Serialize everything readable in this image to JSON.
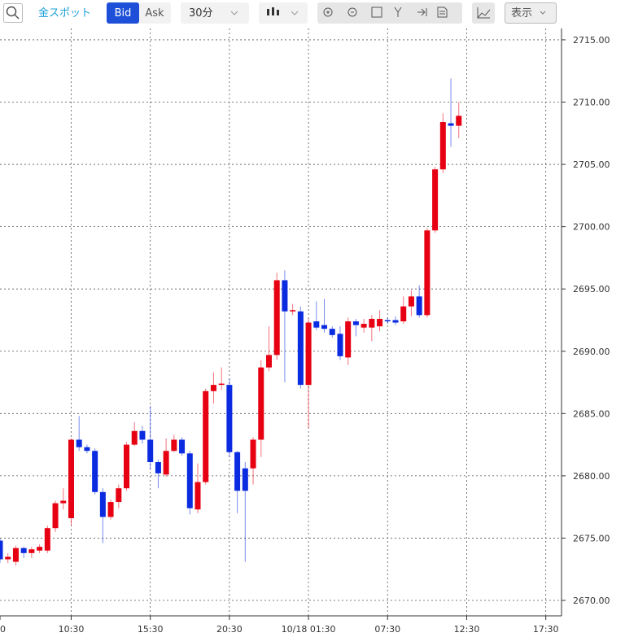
{
  "toolbar": {
    "symbol": "金スポット",
    "bid": "Bid",
    "ask": "Ask",
    "interval": "30分",
    "display": "表示"
  },
  "chart_data": {
    "type": "candlestick",
    "categories": [
      "0",
      null,
      null,
      null,
      null,
      null,
      null,
      null,
      null,
      "10:30",
      null,
      null,
      null,
      null,
      null,
      null,
      null,
      null,
      null,
      "15:30",
      null,
      null,
      null,
      null,
      null,
      null,
      null,
      null,
      null,
      "20:30",
      null,
      null,
      null,
      null,
      null,
      null,
      null,
      null,
      null,
      "10/18 01:30",
      null,
      null,
      null,
      null,
      null,
      null,
      null,
      null,
      null,
      "07:30",
      null,
      null,
      null,
      null,
      null,
      null,
      null,
      null,
      null,
      "12:30",
      null,
      null,
      null,
      null,
      null,
      null,
      null,
      null,
      null,
      "17:30"
    ],
    "open": [
      2674.8,
      2673.3,
      2673.1,
      2674.2,
      2673.8,
      2674.0,
      2674.0,
      2675.8,
      2677.8,
      2676.6,
      2682.9,
      2682.3,
      2682.0,
      2678.7,
      2676.7,
      2677.9,
      2679.0,
      2682.5,
      2683.6,
      2682.9,
      2681.1,
      2680.1,
      2682.0,
      2682.9,
      2681.8,
      2677.3,
      2679.5,
      2686.8,
      2687.3,
      2687.3,
      2681.9,
      2680.6,
      2680.6,
      2682.9,
      2688.7,
      2689.7,
      2695.7,
      2693.2,
      2693.2,
      2687.3,
      2692.4,
      2692.1,
      2691.8,
      2691.4,
      2689.5,
      2692.4,
      2691.9,
      2691.9,
      2692.0,
      2692.5,
      2692.5,
      2692.4,
      2693.6,
      2694.4,
      2692.9,
      2699.7,
      2704.6,
      2708.3,
      2708.1,
      null,
      null,
      null,
      null,
      null,
      null,
      null,
      null,
      null,
      null,
      null
    ],
    "high": [
      2675.0,
      2673.8,
      2674.4,
      2674.3,
      2674.3,
      2674.5,
      2676.0,
      2678.0,
      2679.0,
      2683.0,
      2684.8,
      2682.5,
      2682.2,
      2679.0,
      2678.1,
      2679.3,
      2682.7,
      2684.3,
      2684.0,
      2685.6,
      2681.3,
      2683.0,
      2683.3,
      2683.1,
      2682.0,
      2681.0,
      2687.0,
      2688.3,
      2688.7,
      2687.8,
      2682.0,
      2681.1,
      2683.1,
      2689.3,
      2692.0,
      2696.3,
      2696.5,
      2693.8,
      2693.6,
      2692.6,
      2694.0,
      2694.2,
      2692.0,
      2692.0,
      2692.7,
      2692.6,
      2692.6,
      2692.9,
      2693.3,
      2692.7,
      2692.8,
      2694.4,
      2694.9,
      2695.3,
      2699.9,
      2704.8,
      2709.1,
      2711.9,
      2710.0,
      null,
      null,
      null,
      null,
      null,
      null,
      null,
      null,
      null,
      null,
      null
    ],
    "low": [
      2673.0,
      2673.0,
      2672.8,
      2673.4,
      2673.4,
      2673.8,
      2673.8,
      2675.5,
      2677.3,
      2676.0,
      2682.0,
      2681.8,
      2678.5,
      2674.6,
      2676.5,
      2677.4,
      2678.8,
      2682.4,
      2682.6,
      2680.5,
      2679.0,
      2679.9,
      2681.9,
      2681.6,
      2676.9,
      2677.0,
      2679.3,
      2685.8,
      2686.9,
      2681.5,
      2677.0,
      2673.1,
      2679.3,
      2681.5,
      2688.4,
      2689.3,
      2687.5,
      2692.9,
      2687.0,
      2683.8,
      2691.7,
      2691.5,
      2691.1,
      2689.3,
      2688.9,
      2691.2,
      2691.5,
      2690.8,
      2691.6,
      2692.2,
      2692.1,
      2692.2,
      2692.8,
      2692.7,
      2692.7,
      2699.5,
      2704.3,
      2706.4,
      2707.1,
      null,
      null,
      null,
      null,
      null,
      null,
      null,
      null,
      null,
      null,
      null
    ],
    "close": [
      2673.3,
      2673.5,
      2674.2,
      2673.8,
      2674.1,
      2674.3,
      2675.8,
      2677.8,
      2678.0,
      2682.9,
      2682.3,
      2682.0,
      2678.7,
      2676.7,
      2677.9,
      2679.0,
      2682.5,
      2683.6,
      2682.9,
      2681.1,
      2680.2,
      2682.0,
      2682.9,
      2681.8,
      2677.4,
      2679.5,
      2686.8,
      2687.3,
      2687.4,
      2681.9,
      2678.8,
      2678.8,
      2682.9,
      2688.7,
      2689.7,
      2695.7,
      2693.2,
      2693.3,
      2687.3,
      2692.3,
      2691.9,
      2691.8,
      2691.3,
      2689.6,
      2692.4,
      2692.1,
      2692.2,
      2692.6,
      2692.6,
      2692.4,
      2692.3,
      2693.6,
      2694.4,
      2692.9,
      2699.7,
      2704.6,
      2708.4,
      2708.1,
      2708.9,
      null,
      null,
      null,
      null,
      null,
      null,
      null,
      null,
      null,
      null,
      null
    ],
    "up_color": "#e60012",
    "down_color": "#0a2be0",
    "ylim": [
      2668.76,
      2715.91
    ],
    "yticks": [
      {
        "value": 2670,
        "label": "2670.00"
      },
      {
        "value": 2675,
        "label": "2675.00"
      },
      {
        "value": 2680,
        "label": "2680.00"
      },
      {
        "value": 2685,
        "label": "2685.00"
      },
      {
        "value": 2690,
        "label": "2690.00"
      },
      {
        "value": 2695,
        "label": "2695.00"
      },
      {
        "value": 2700,
        "label": "2700.00"
      },
      {
        "value": 2705,
        "label": "2705.00"
      },
      {
        "value": 2710,
        "label": "2710.00"
      },
      {
        "value": 2715,
        "label": "2715.00"
      }
    ],
    "grid": true
  }
}
